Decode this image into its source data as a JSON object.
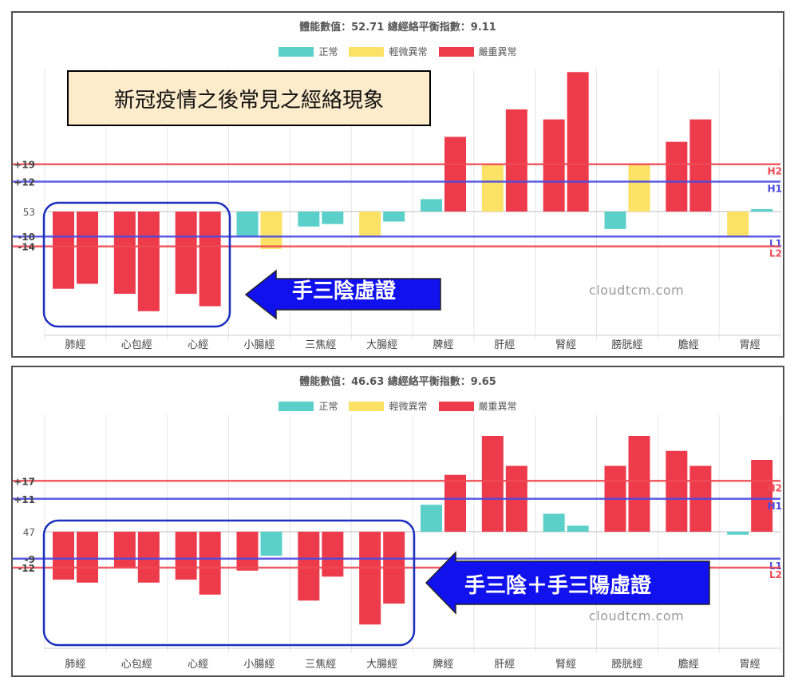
{
  "colors": {
    "normal": "#5bcfc9",
    "mild": "#fbe165",
    "severe": "#ee3b4b",
    "h_line": "#ee4b55",
    "mid_line": "#4a4ae0",
    "highlight": "#1c2fbf",
    "arrow": "#1111ee"
  },
  "legend": [
    "正常",
    "輕微異常",
    "嚴重異常"
  ],
  "annotations": {
    "top_box": "新冠疫情之後常見之經絡現象",
    "top_arrow": "手三陰虛證",
    "bottom_arrow": "手三陰＋手三陽虛證",
    "watermark": "cloudtcm.com"
  },
  "chart_data": [
    {
      "type": "bar",
      "title": "體能數值：52.71 總經絡平衡指數：9.11",
      "categories": [
        "肺經",
        "心包經",
        "心經",
        "小腸經",
        "三焦經",
        "大腸經",
        "脾經",
        "肝經",
        "腎經",
        "膀胱經",
        "膽經",
        "胃經"
      ],
      "baseline_label": "53",
      "ref_lines": [
        {
          "value": 19,
          "tick": "+19",
          "tag": "H2",
          "kind": "outer"
        },
        {
          "value": 12,
          "tick": "+12",
          "tag": "H1",
          "kind": "inner"
        },
        {
          "value": -10,
          "tick": "-10",
          "tag": "L1",
          "kind": "inner"
        },
        {
          "value": -14,
          "tick": "-14",
          "tag": "L2",
          "kind": "outer"
        }
      ],
      "ylim": [
        -43,
        51
      ],
      "bars": [
        [
          [
            "severe",
            -31
          ],
          [
            "severe",
            -29
          ]
        ],
        [
          [
            "severe",
            -33
          ],
          [
            "severe",
            -40
          ]
        ],
        [
          [
            "severe",
            -33
          ],
          [
            "severe",
            -38
          ]
        ],
        [
          [
            "normal",
            -10
          ],
          [
            "mild",
            -15
          ]
        ],
        [
          [
            "normal",
            -6
          ],
          [
            "normal",
            -5
          ]
        ],
        [
          [
            "mild",
            -10
          ],
          [
            "normal",
            -4
          ]
        ],
        [
          [
            "normal",
            5
          ],
          [
            "severe",
            30
          ]
        ],
        [
          [
            "mild",
            19
          ],
          [
            "severe",
            41
          ]
        ],
        [
          [
            "severe",
            37
          ],
          [
            "severe",
            56
          ]
        ],
        [
          [
            "normal",
            -7
          ],
          [
            "mild",
            19
          ]
        ],
        [
          [
            "severe",
            28
          ],
          [
            "severe",
            37
          ]
        ],
        [
          [
            "mild",
            -10
          ],
          [
            "normal",
            1
          ]
        ]
      ]
    },
    {
      "type": "bar",
      "title": "體能數值：46.63 總經絡平衡指數：9.65",
      "categories": [
        "肺經",
        "心包經",
        "心經",
        "小腸經",
        "三焦經",
        "大腸經",
        "脾經",
        "肝經",
        "腎經",
        "膀胱經",
        "膽經",
        "胃經"
      ],
      "baseline_label": "47",
      "ref_lines": [
        {
          "value": 17,
          "tick": "+17",
          "tag": "H2",
          "kind": "outer"
        },
        {
          "value": 11,
          "tick": "+11",
          "tag": "H1",
          "kind": "inner"
        },
        {
          "value": -9,
          "tick": "-9",
          "tag": "L1",
          "kind": "inner"
        },
        {
          "value": -12,
          "tick": "-12",
          "tag": "L2",
          "kind": "outer"
        }
      ],
      "ylim": [
        -39,
        39
      ],
      "bars": [
        [
          [
            "severe",
            -16
          ],
          [
            "severe",
            -17
          ]
        ],
        [
          [
            "severe",
            -12
          ],
          [
            "severe",
            -17
          ]
        ],
        [
          [
            "severe",
            -16
          ],
          [
            "severe",
            -21
          ]
        ],
        [
          [
            "severe",
            -13
          ],
          [
            "normal",
            -8
          ]
        ],
        [
          [
            "severe",
            -23
          ],
          [
            "severe",
            -15
          ]
        ],
        [
          [
            "severe",
            -31
          ],
          [
            "severe",
            -24
          ]
        ],
        [
          [
            "normal",
            9
          ],
          [
            "severe",
            19
          ]
        ],
        [
          [
            "severe",
            32
          ],
          [
            "severe",
            22
          ]
        ],
        [
          [
            "normal",
            6
          ],
          [
            "normal",
            2
          ]
        ],
        [
          [
            "severe",
            22
          ],
          [
            "severe",
            32
          ]
        ],
        [
          [
            "severe",
            27
          ],
          [
            "severe",
            22
          ]
        ],
        [
          [
            "normal",
            -1
          ],
          [
            "severe",
            24
          ]
        ]
      ]
    }
  ]
}
